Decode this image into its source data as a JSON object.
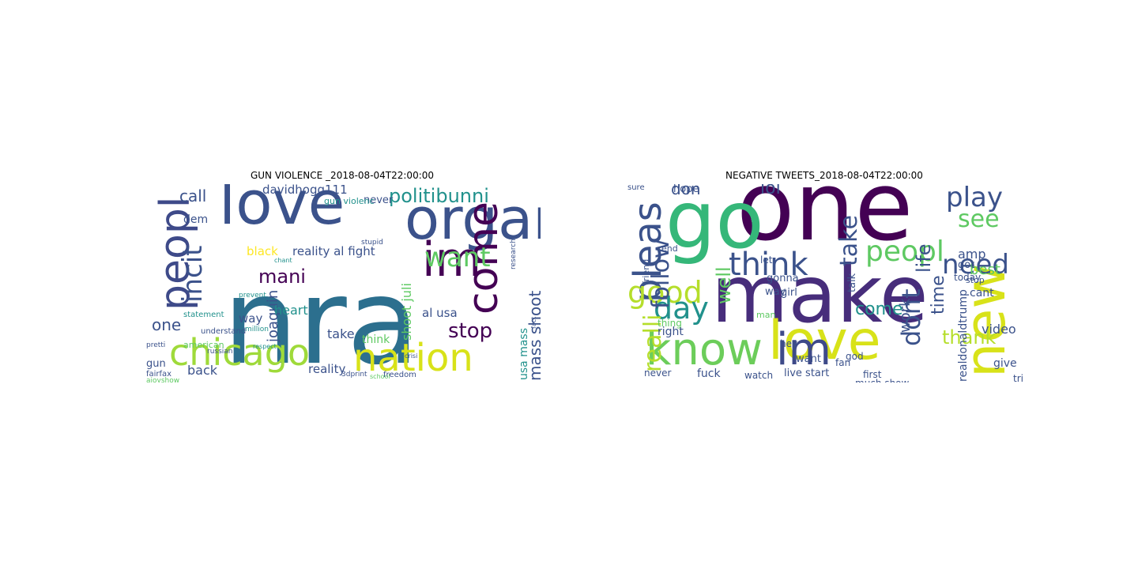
{
  "panels": [
    {
      "title": "GUN VIOLENCE _2018-08-04T22:00:00",
      "words": [
        {
          "text": "nra",
          "color": "#2c6f8e",
          "v": false
        },
        {
          "text": "love",
          "color": "#3b528b",
          "v": false
        },
        {
          "text": "chicago",
          "color": "#9fda3a",
          "v": false
        },
        {
          "text": "nation",
          "color": "#d8e219",
          "v": false
        },
        {
          "text": "organ",
          "color": "#3b528b",
          "v": false
        },
        {
          "text": "peopl",
          "color": "#3e4a89",
          "v": true
        },
        {
          "text": "come",
          "color": "#440154",
          "v": true
        },
        {
          "text": "im",
          "color": "#440154",
          "v": false
        },
        {
          "text": "want",
          "color": "#5ec962",
          "v": false
        },
        {
          "text": "incit",
          "color": "#3b528b",
          "v": true
        },
        {
          "text": "politibunni",
          "color": "#21918c",
          "v": false
        },
        {
          "text": "mani",
          "color": "#440154",
          "v": false
        },
        {
          "text": "reality al fight",
          "color": "#3b528b",
          "v": false
        },
        {
          "text": "davidhogg111",
          "color": "#3b528b",
          "v": false
        },
        {
          "text": "call",
          "color": "#3b528b",
          "v": false
        },
        {
          "text": "one",
          "color": "#3b528b",
          "v": false
        },
        {
          "text": "stop",
          "color": "#440154",
          "v": false
        },
        {
          "text": "back",
          "color": "#3b528b",
          "v": false
        },
        {
          "text": "reality",
          "color": "#3b528b",
          "v": false
        },
        {
          "text": "joaquin",
          "color": "#3b528b",
          "v": true
        },
        {
          "text": "shoot juli",
          "color": "#5ec962",
          "v": true
        },
        {
          "text": "mass shoot",
          "color": "#3b528b",
          "v": true
        },
        {
          "text": "usa mass",
          "color": "#21918c",
          "v": true
        },
        {
          "text": "al usa",
          "color": "#3b528b",
          "v": false
        },
        {
          "text": "heart",
          "color": "#21918c",
          "v": false
        },
        {
          "text": "take",
          "color": "#3b528b",
          "v": false
        },
        {
          "text": "black",
          "color": "#fde725",
          "v": false
        },
        {
          "text": "dem",
          "color": "#3b528b",
          "v": false
        },
        {
          "text": "way",
          "color": "#3b528b",
          "v": false
        },
        {
          "text": "gun",
          "color": "#3b528b",
          "v": false
        },
        {
          "text": "think",
          "color": "#5ec962",
          "v": false
        },
        {
          "text": "never",
          "color": "#3b528b",
          "v": false
        },
        {
          "text": "gun violenc",
          "color": "#21918c",
          "v": false
        },
        {
          "text": "american",
          "color": "#5ec962",
          "v": false
        },
        {
          "text": "understand",
          "color": "#3b528b",
          "v": false
        },
        {
          "text": "fairfax",
          "color": "#3b528b",
          "v": false
        },
        {
          "text": "freedom",
          "color": "#3b528b",
          "v": false
        },
        {
          "text": "research",
          "color": "#3b528b",
          "v": true
        },
        {
          "text": "statement",
          "color": "#21918c",
          "v": false
        },
        {
          "text": "million",
          "color": "#21918c",
          "v": false
        },
        {
          "text": "prevent",
          "color": "#21918c",
          "v": false
        },
        {
          "text": "chant",
          "color": "#21918c",
          "v": false
        },
        {
          "text": "respect",
          "color": "#21918c",
          "v": false
        },
        {
          "text": "russian",
          "color": "#3b528b",
          "v": false
        },
        {
          "text": "stupid",
          "color": "#3b528b",
          "v": false
        },
        {
          "text": "school",
          "color": "#5ec962",
          "v": false
        },
        {
          "text": "pretti",
          "color": "#3b528b",
          "v": false
        },
        {
          "text": "crisi",
          "color": "#3b528b",
          "v": false
        },
        {
          "text": "3dprint",
          "color": "#3b528b",
          "v": false
        },
        {
          "text": "fact",
          "color": "#3b528b",
          "v": true
        },
        {
          "text": "ajoyshow",
          "color": "#5ec962",
          "v": false
        }
      ]
    },
    {
      "title": "NEGATIVE TWEETS_2018-08-04T22:00:00",
      "words": [
        {
          "text": "one",
          "color": "#440154",
          "v": false
        },
        {
          "text": "go",
          "color": "#35b779",
          "v": false
        },
        {
          "text": "make",
          "color": "#472d7b",
          "v": false
        },
        {
          "text": "love",
          "color": "#d8e219",
          "v": false
        },
        {
          "text": "know",
          "color": "#6ccd5a",
          "v": false
        },
        {
          "text": "im",
          "color": "#3e4a89",
          "v": false
        },
        {
          "text": "new",
          "color": "#d8e219",
          "v": true
        },
        {
          "text": "pleas",
          "color": "#3b528b",
          "v": true
        },
        {
          "text": "think",
          "color": "#3b528b",
          "v": false
        },
        {
          "text": "peopl",
          "color": "#5ec962",
          "v": false
        },
        {
          "text": "need",
          "color": "#3b528b",
          "v": false
        },
        {
          "text": "play",
          "color": "#3b528b",
          "v": false
        },
        {
          "text": "see",
          "color": "#5ec962",
          "v": false
        },
        {
          "text": "good",
          "color": "#b5de2b",
          "v": false
        },
        {
          "text": "day",
          "color": "#21918c",
          "v": false
        },
        {
          "text": "dont",
          "color": "#3b528b",
          "v": true
        },
        {
          "text": "follow",
          "color": "#3b528b",
          "v": true
        },
        {
          "text": "take",
          "color": "#3b528b",
          "v": true
        },
        {
          "text": "lol",
          "color": "#3b528b",
          "v": false
        },
        {
          "text": "don",
          "color": "#3b528b",
          "v": false
        },
        {
          "text": "look",
          "color": "#3b528b",
          "v": true
        },
        {
          "text": "thank",
          "color": "#b5de2b",
          "v": false
        },
        {
          "text": "realli",
          "color": "#b5de2b",
          "v": true
        },
        {
          "text": "come",
          "color": "#21918c",
          "v": false
        },
        {
          "text": "amp",
          "color": "#3b528b",
          "v": false
        },
        {
          "text": "life",
          "color": "#3b528b",
          "v": true
        },
        {
          "text": "time",
          "color": "#3b528b",
          "v": true
        },
        {
          "text": "well",
          "color": "#5ec962",
          "v": true
        },
        {
          "text": "video",
          "color": "#3b528b",
          "v": false
        },
        {
          "text": "realdonaldtrump",
          "color": "#3b528b",
          "v": true
        },
        {
          "text": "hope",
          "color": "#3b528b",
          "v": false
        },
        {
          "text": "work",
          "color": "#3b528b",
          "v": true
        },
        {
          "text": "right",
          "color": "#3b528b",
          "v": false
        },
        {
          "text": "watch",
          "color": "#3b528b",
          "v": false
        },
        {
          "text": "live start",
          "color": "#3b528b",
          "v": false
        },
        {
          "text": "fuck",
          "color": "#3b528b",
          "v": false
        },
        {
          "text": "give",
          "color": "#3b528b",
          "v": false
        },
        {
          "text": "want",
          "color": "#3b528b",
          "v": false
        },
        {
          "text": "hey",
          "color": "#3b528b",
          "v": false
        },
        {
          "text": "fan",
          "color": "#3b528b",
          "v": false
        },
        {
          "text": "first",
          "color": "#3b528b",
          "v": false
        },
        {
          "text": "never",
          "color": "#3b528b",
          "v": false
        },
        {
          "text": "tri",
          "color": "#3b528b",
          "v": false
        },
        {
          "text": "best",
          "color": "#5ec962",
          "v": false
        },
        {
          "text": "sure",
          "color": "#3b528b",
          "v": false
        },
        {
          "text": "friend",
          "color": "#3b528b",
          "v": true
        },
        {
          "text": "gonna",
          "color": "#3b528b",
          "v": false
        },
        {
          "text": "let",
          "color": "#3b528b",
          "v": false
        },
        {
          "text": "way",
          "color": "#3b528b",
          "v": false
        },
        {
          "text": "girl",
          "color": "#3b528b",
          "v": false
        },
        {
          "text": "end",
          "color": "#3b528b",
          "v": false
        },
        {
          "text": "god",
          "color": "#3b528b",
          "v": false
        },
        {
          "text": "talk",
          "color": "#3b528b",
          "v": true
        },
        {
          "text": "stop",
          "color": "#3b528b",
          "v": false
        },
        {
          "text": "today",
          "color": "#3b528b",
          "v": false
        },
        {
          "text": "got",
          "color": "#3b528b",
          "v": false
        },
        {
          "text": "cant",
          "color": "#3b528b",
          "v": false
        },
        {
          "text": "much show",
          "color": "#3b528b",
          "v": false
        },
        {
          "text": "thing",
          "color": "#5ec962",
          "v": false
        },
        {
          "text": "man",
          "color": "#5ec962",
          "v": false
        },
        {
          "text": "guy",
          "color": "#3b528b",
          "v": false
        }
      ]
    }
  ]
}
